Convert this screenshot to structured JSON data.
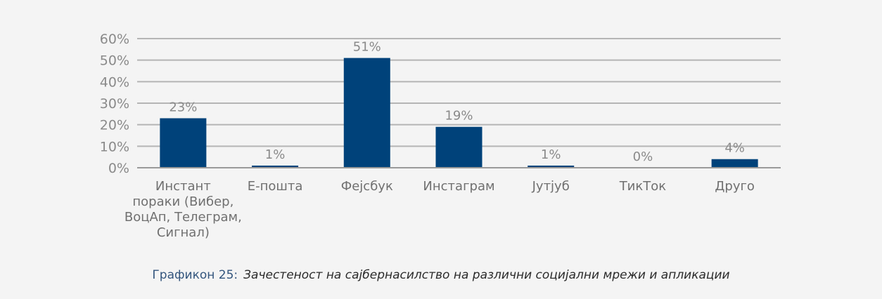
{
  "chart_data": {
    "type": "bar",
    "categories": [
      [
        "Инстант",
        "пораки (Вибер,",
        "ВоцАп, Телеграм,",
        "Сигнал)"
      ],
      [
        "Е-пошта"
      ],
      [
        "Фејсбук"
      ],
      [
        "Инстаграм"
      ],
      [
        "Јутјуб"
      ],
      [
        "ТикТок"
      ],
      [
        "Друго"
      ]
    ],
    "values": [
      23,
      1,
      51,
      19,
      1,
      0,
      4
    ],
    "data_labels": [
      "23%",
      "1%",
      "51%",
      "19%",
      "1%",
      "0%",
      "4%"
    ],
    "ylim": [
      0,
      60
    ],
    "yticks": [
      0,
      10,
      20,
      30,
      40,
      50,
      60
    ],
    "ytick_labels": [
      "0%",
      "10%",
      "20%",
      "30%",
      "40%",
      "50%",
      "60%"
    ],
    "grid": true,
    "legend": "none",
    "bar_color": "#00427a",
    "grid_color": "#b5b5b5",
    "axis_color": "#9a9a9a"
  },
  "caption": {
    "number": "Графикон 25:",
    "title": "Зачестеност на сајбернасилство на различни социјални мрежи и апликации"
  }
}
